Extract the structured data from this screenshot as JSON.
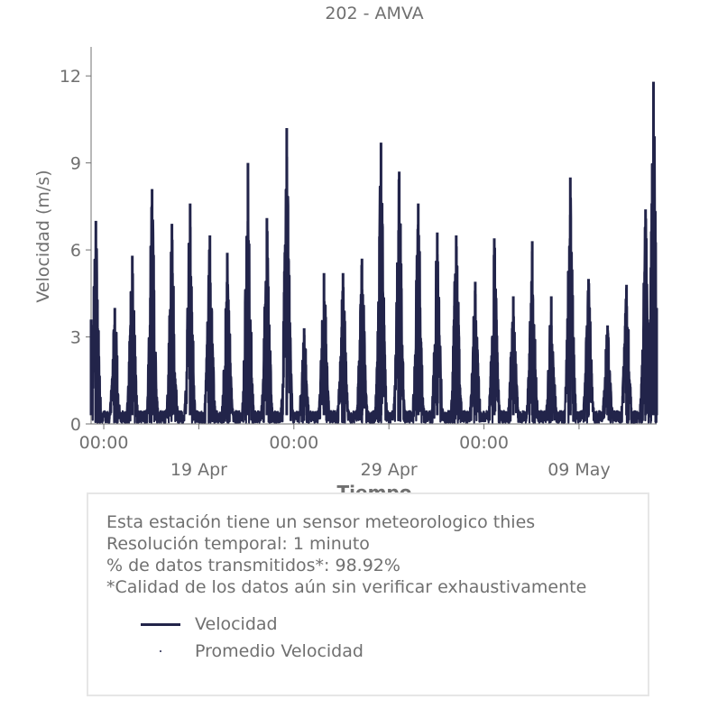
{
  "chart_data": {
    "type": "line",
    "title": "202 - AMVA",
    "xlabel": "Tiempo",
    "ylabel": "Velocidad (m/s)",
    "ylim": [
      0,
      13
    ],
    "yticks": [
      0,
      3,
      6,
      9,
      12
    ],
    "xlim": [
      "2019-04-13T08:00",
      "2019-05-13T02:00"
    ],
    "x_tick_labels": [
      {
        "date": "2019-04-14T00:00",
        "time": "00:00",
        "day": ""
      },
      {
        "date": "2019-04-19T00:00",
        "time": "",
        "day": "19 Apr"
      },
      {
        "date": "2019-04-24T00:00",
        "time": "00:00",
        "day": ""
      },
      {
        "date": "2019-04-29T00:00",
        "time": "",
        "day": "29 Apr"
      },
      {
        "date": "2019-05-04T00:00",
        "time": "00:00",
        "day": ""
      },
      {
        "date": "2019-05-09T00:00",
        "time": "",
        "day": "09 May"
      },
      {
        "date": "2019-05-14T00:00",
        "time": "00:00",
        "day": ""
      }
    ],
    "grid": false,
    "legend_position": "below",
    "series": [
      {
        "name": "Velocidad",
        "color": "#22244a",
        "peaks": [
          [
            "2019-04-13T08:00",
            3.6
          ],
          [
            "2019-04-13T14:00",
            7.0
          ],
          [
            "2019-04-14T14:00",
            4.0
          ],
          [
            "2019-04-15T12:00",
            5.8
          ],
          [
            "2019-04-16T13:00",
            8.1
          ],
          [
            "2019-04-17T14:00",
            6.9
          ],
          [
            "2019-04-18T13:00",
            7.6
          ],
          [
            "2019-04-19T14:00",
            6.5
          ],
          [
            "2019-04-20T12:00",
            5.9
          ],
          [
            "2019-04-21T14:00",
            9.0
          ],
          [
            "2019-04-22T14:00",
            7.1
          ],
          [
            "2019-04-23T15:00",
            10.2
          ],
          [
            "2019-04-24T13:00",
            3.3
          ],
          [
            "2019-04-25T14:00",
            5.2
          ],
          [
            "2019-04-26T14:00",
            5.2
          ],
          [
            "2019-04-27T14:00",
            5.7
          ],
          [
            "2019-04-28T14:00",
            9.7
          ],
          [
            "2019-04-29T13:00",
            8.7
          ],
          [
            "2019-04-30T13:00",
            7.6
          ],
          [
            "2019-05-01T13:00",
            6.6
          ],
          [
            "2019-05-02T13:00",
            6.5
          ],
          [
            "2019-05-03T13:00",
            4.9
          ],
          [
            "2019-05-04T13:00",
            6.4
          ],
          [
            "2019-05-05T13:00",
            4.4
          ],
          [
            "2019-05-06T13:00",
            6.3
          ],
          [
            "2019-05-07T13:00",
            4.4
          ],
          [
            "2019-05-08T13:00",
            8.5
          ],
          [
            "2019-05-09T12:00",
            5.0
          ],
          [
            "2019-05-10T12:00",
            3.4
          ],
          [
            "2019-05-11T12:00",
            4.8
          ],
          [
            "2019-05-12T12:00",
            7.4
          ],
          [
            "2019-05-12T22:00",
            11.8
          ],
          [
            "2019-05-13T02:00",
            4.0
          ]
        ]
      },
      {
        "name": "Promedio Velocidad",
        "color": "#22244a",
        "style": "point"
      }
    ]
  },
  "info": {
    "lines": [
      "Esta estación tiene un sensor meteorologico thies",
      "Resolución temporal: 1 minuto",
      "% de datos transmitidos*: 98.92%",
      "*Calidad de los datos aún sin verificar exhaustivamente"
    ]
  },
  "colors": {
    "series": "#22244a",
    "text": "#707070",
    "axis": "#707070",
    "box_border": "#e6e6e6"
  }
}
